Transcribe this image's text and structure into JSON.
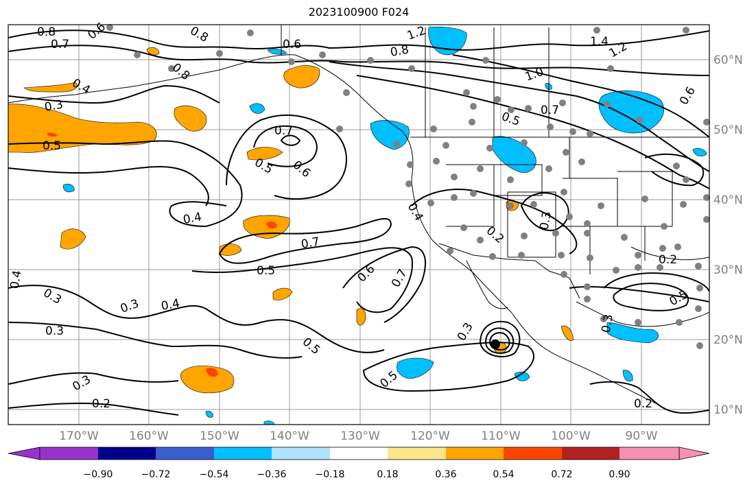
{
  "title": "2023100900 F024",
  "lon_ticks": [
    "170°W",
    "160°W",
    "150°W",
    "140°W",
    "130°W",
    "120°W",
    "110°W",
    "100°W",
    "90°W"
  ],
  "lat_ticks": [
    "60°N",
    "50°N",
    "40°N",
    "30°N",
    "20°N",
    "10°N"
  ],
  "colorbar": {
    "colors": [
      "#9932cc",
      "#00008b",
      "#3a5fcd",
      "#00bfff",
      "#b0e2ff",
      "#ffffff",
      "#fde68a",
      "#ffa500",
      "#ff4500",
      "#b22222",
      "#f78fb3"
    ],
    "labels": [
      "−0.90",
      "−0.72",
      "−0.54",
      "−0.36",
      "−0.18",
      "0.18",
      "0.36",
      "0.54",
      "0.72",
      "0.90"
    ]
  },
  "contour_labels": [
    "0.8",
    "0.7",
    "0.6",
    "0.8",
    "0.6",
    "1.2",
    "0.8",
    "1.4",
    "1.2",
    "0.8",
    "0.4",
    "0.3",
    "0.5",
    "0.7",
    "0.5",
    "0.6",
    "1.0",
    "0.5",
    "0.7",
    "0.6",
    "0.4",
    "0.4",
    "0.7",
    "0.5",
    "0.6",
    "0.7",
    "0.4",
    "0.3",
    "0.4",
    "0.3",
    "0.3",
    "0.5",
    "0.5",
    "0.3",
    "0.2",
    "0.2",
    "0.3",
    "0.2",
    "0.3",
    "0.5",
    "0.2",
    "0.3"
  ],
  "colors": {
    "positive": "#ffa500",
    "negative": "#00bfff",
    "strong_positive": "#ff4500",
    "station": "#808080",
    "grid": "#999999"
  }
}
